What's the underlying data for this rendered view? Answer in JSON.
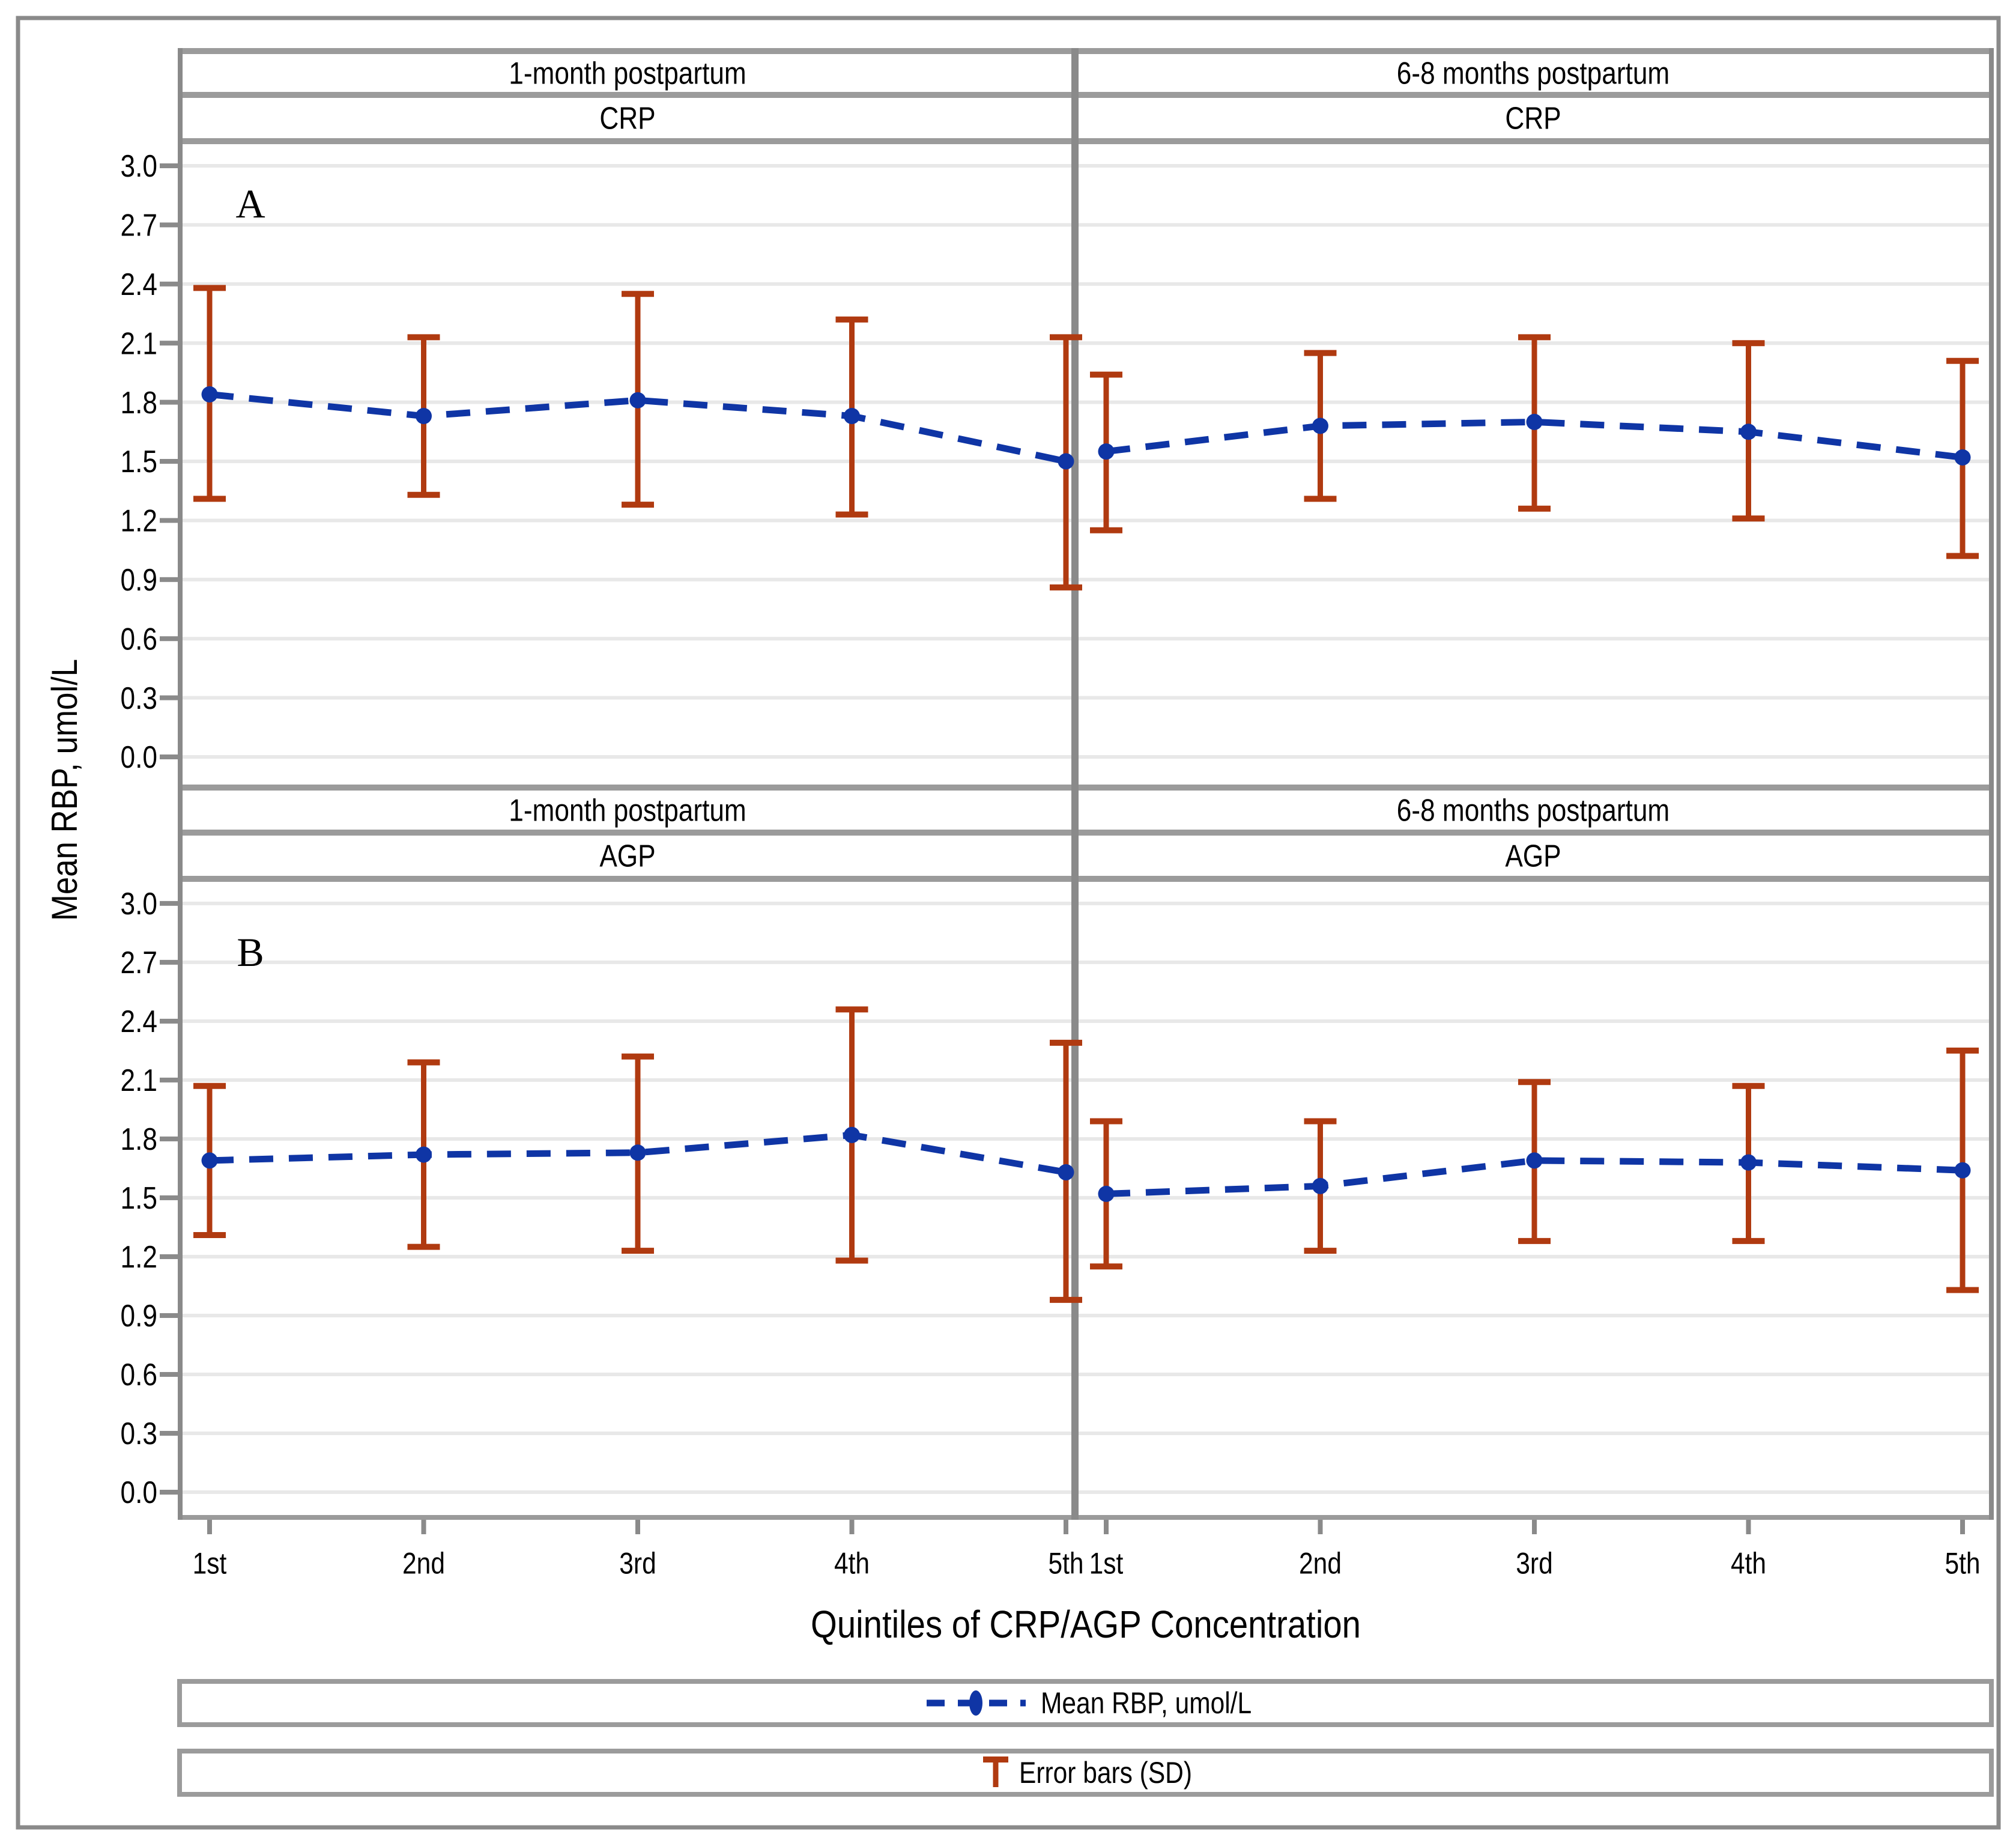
{
  "chart_data": {
    "type": "line",
    "title": "",
    "xlabel": "Quintiles of CRP/AGP Concentration",
    "ylabel": "Mean RBP, umol/L",
    "categories": [
      "1st",
      "2nd",
      "3rd",
      "4th",
      "5th"
    ],
    "facet_columns": [
      "1-month postpartum",
      "6-8 months postpartum"
    ],
    "facet_rows": [
      "CRP",
      "AGP"
    ],
    "y_ticks": [
      0.0,
      0.3,
      0.6,
      0.9,
      1.2,
      1.5,
      1.8,
      2.1,
      2.4,
      2.7,
      3.0
    ],
    "ylim": [
      0.0,
      3.2
    ],
    "grid": "horizontal",
    "legend_position": "bottom",
    "legend": [
      {
        "label": "Mean RBP, umol/L",
        "swatch": "blue-dashed-line-with-marker"
      },
      {
        "label": "Error bars (SD)",
        "swatch": "red-error-bar-T"
      }
    ],
    "panels": [
      {
        "panel_letter": "A",
        "facet_col": "1-month postpartum",
        "facet_row": "CRP",
        "series": {
          "name": "Mean RBP, umol/L",
          "means": [
            1.84,
            1.73,
            1.81,
            1.73,
            1.5
          ]
        },
        "error_bars": {
          "name": "Error bars (SD)",
          "lower": [
            1.31,
            1.33,
            1.28,
            1.23,
            0.86
          ],
          "upper": [
            2.38,
            2.13,
            2.35,
            2.22,
            2.13
          ]
        }
      },
      {
        "panel_letter": null,
        "facet_col": "6-8 months postpartum",
        "facet_row": "CRP",
        "series": {
          "name": "Mean RBP, umol/L",
          "means": [
            1.55,
            1.68,
            1.7,
            1.65,
            1.52
          ]
        },
        "error_bars": {
          "name": "Error bars (SD)",
          "lower": [
            1.15,
            1.31,
            1.26,
            1.21,
            1.02
          ],
          "upper": [
            1.94,
            2.05,
            2.13,
            2.1,
            2.01
          ]
        }
      },
      {
        "panel_letter": "B",
        "facet_col": "1-month postpartum",
        "facet_row": "AGP",
        "series": {
          "name": "Mean RBP, umol/L",
          "means": [
            1.69,
            1.72,
            1.73,
            1.82,
            1.63
          ]
        },
        "error_bars": {
          "name": "Error bars (SD)",
          "lower": [
            1.31,
            1.25,
            1.23,
            1.18,
            0.98
          ],
          "upper": [
            2.07,
            2.19,
            2.22,
            2.46,
            2.29
          ]
        }
      },
      {
        "panel_letter": null,
        "facet_col": "6-8 months postpartum",
        "facet_row": "AGP",
        "series": {
          "name": "Mean RBP, umol/L",
          "means": [
            1.52,
            1.56,
            1.69,
            1.68,
            1.64
          ]
        },
        "error_bars": {
          "name": "Error bars (SD)",
          "lower": [
            1.15,
            1.23,
            1.28,
            1.28,
            1.03
          ],
          "upper": [
            1.89,
            1.89,
            2.09,
            2.07,
            2.25
          ]
        }
      }
    ],
    "colors": {
      "series_line": "#0F35A5",
      "error_bar": "#B03A10",
      "gridline": "#E8E8E8",
      "frame": "#8A8A8A",
      "header_bar": "#9B9B9B",
      "text": "#000000"
    }
  }
}
